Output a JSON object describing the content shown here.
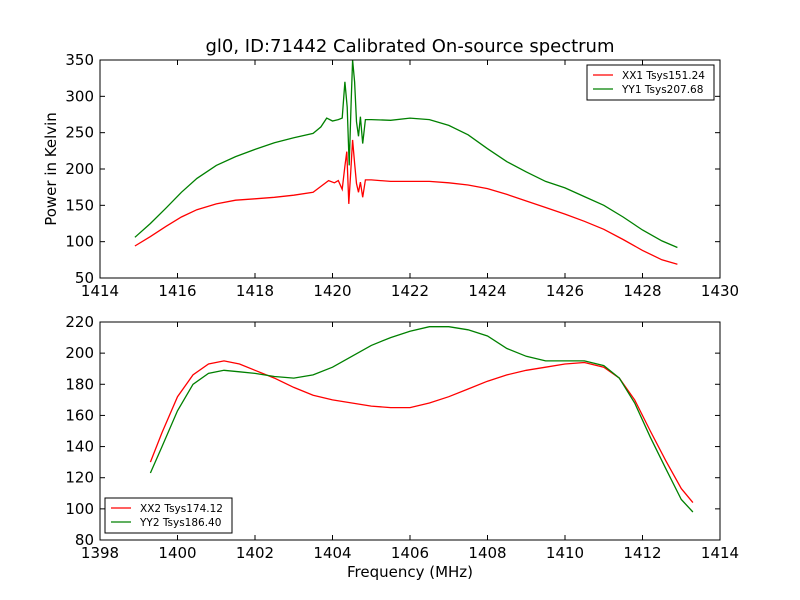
{
  "figure": {
    "title": "gl0, ID:71442 Calibrated On-source spectrum"
  },
  "chart_data": [
    {
      "type": "line",
      "title": "gl0, ID:71442 Calibrated On-source spectrum",
      "xlabel": "",
      "ylabel": "Power in Kelvin",
      "xlim": [
        1414,
        1430
      ],
      "ylim": [
        50,
        350
      ],
      "xticks": [
        "1414",
        "1416",
        "1418",
        "1420",
        "1422",
        "1424",
        "1426",
        "1428",
        "1430"
      ],
      "yticks": [
        "50",
        "100",
        "150",
        "200",
        "250",
        "300",
        "350"
      ],
      "grid": false,
      "legend_position": "top-right",
      "series": [
        {
          "name": "XX1 Tsys151.24",
          "color": "#ff0000",
          "x": [
            1414.9,
            1415.3,
            1415.7,
            1416.1,
            1416.5,
            1417.0,
            1417.5,
            1418.0,
            1418.5,
            1419.0,
            1419.5,
            1419.7,
            1419.9,
            1420.05,
            1420.15,
            1420.25,
            1420.32,
            1420.37,
            1420.42,
            1420.47,
            1420.52,
            1420.57,
            1420.62,
            1420.67,
            1420.72,
            1420.78,
            1420.85,
            1421.0,
            1421.5,
            1422.0,
            1422.5,
            1423.0,
            1423.5,
            1424.0,
            1424.5,
            1425.0,
            1425.5,
            1426.0,
            1426.5,
            1427.0,
            1427.5,
            1428.0,
            1428.5,
            1428.9
          ],
          "y": [
            94,
            107,
            121,
            134,
            144,
            152,
            157,
            159,
            161,
            164,
            168,
            176,
            184,
            181,
            184,
            172,
            204,
            224,
            152,
            195,
            240,
            208,
            180,
            168,
            182,
            161,
            185,
            185,
            183,
            183,
            183,
            181,
            178,
            173,
            165,
            156,
            147,
            138,
            128,
            117,
            103,
            88,
            75,
            69
          ]
        },
        {
          "name": "YY1 Tsys207.68",
          "color": "#008000",
          "x": [
            1414.9,
            1415.3,
            1415.7,
            1416.1,
            1416.5,
            1417.0,
            1417.5,
            1418.0,
            1418.5,
            1419.0,
            1419.5,
            1419.7,
            1419.85,
            1420.0,
            1420.15,
            1420.25,
            1420.32,
            1420.38,
            1420.43,
            1420.48,
            1420.52,
            1420.57,
            1420.62,
            1420.67,
            1420.72,
            1420.78,
            1420.85,
            1421.0,
            1421.5,
            1422.0,
            1422.5,
            1423.0,
            1423.5,
            1424.0,
            1424.5,
            1425.0,
            1425.5,
            1426.0,
            1426.5,
            1427.0,
            1427.5,
            1428.0,
            1428.5,
            1428.9
          ],
          "y": [
            106,
            125,
            146,
            168,
            187,
            205,
            217,
            227,
            236,
            243,
            249,
            258,
            270,
            266,
            268,
            270,
            320,
            285,
            205,
            290,
            350,
            320,
            265,
            245,
            272,
            235,
            268,
            268,
            267,
            270,
            268,
            260,
            247,
            228,
            210,
            196,
            183,
            174,
            162,
            150,
            134,
            116,
            101,
            92
          ]
        }
      ]
    },
    {
      "type": "line",
      "title": "",
      "xlabel": "Frequency (MHz)",
      "ylabel": "",
      "xlim": [
        1398,
        1414
      ],
      "ylim": [
        80,
        220
      ],
      "xticks": [
        "1398",
        "1400",
        "1402",
        "1404",
        "1406",
        "1408",
        "1410",
        "1412",
        "1414"
      ],
      "yticks": [
        "80",
        "100",
        "120",
        "140",
        "160",
        "180",
        "200",
        "220"
      ],
      "grid": false,
      "legend_position": "bottom-left",
      "series": [
        {
          "name": "XX2 Tsys174.12",
          "color": "#ff0000",
          "x": [
            1399.3,
            1399.6,
            1400.0,
            1400.4,
            1400.8,
            1401.2,
            1401.6,
            1402.0,
            1402.5,
            1403.0,
            1403.5,
            1404.0,
            1404.5,
            1405.0,
            1405.5,
            1406.0,
            1406.5,
            1407.0,
            1407.5,
            1408.0,
            1408.5,
            1409.0,
            1409.5,
            1410.0,
            1410.5,
            1411.0,
            1411.4,
            1411.8,
            1412.2,
            1412.6,
            1413.0,
            1413.3
          ],
          "y": [
            130,
            149,
            172,
            186,
            193,
            195,
            193,
            189,
            184,
            178,
            173,
            170,
            168,
            166,
            165,
            165,
            168,
            172,
            177,
            182,
            186,
            189,
            191,
            193,
            194,
            191,
            184,
            170,
            150,
            131,
            113,
            104
          ]
        },
        {
          "name": "YY2 Tsys186.40",
          "color": "#008000",
          "x": [
            1399.3,
            1399.6,
            1400.0,
            1400.4,
            1400.8,
            1401.2,
            1401.6,
            1402.0,
            1402.5,
            1403.0,
            1403.5,
            1404.0,
            1404.5,
            1405.0,
            1405.5,
            1406.0,
            1406.5,
            1407.0,
            1407.5,
            1408.0,
            1408.5,
            1409.0,
            1409.5,
            1410.0,
            1410.5,
            1411.0,
            1411.4,
            1411.8,
            1412.2,
            1412.6,
            1413.0,
            1413.3
          ],
          "y": [
            123,
            140,
            163,
            180,
            187,
            189,
            188,
            187,
            185,
            184,
            186,
            191,
            198,
            205,
            210,
            214,
            217,
            217,
            215,
            211,
            203,
            198,
            195,
            195,
            195,
            192,
            184,
            168,
            146,
            126,
            106,
            98
          ]
        }
      ]
    }
  ]
}
